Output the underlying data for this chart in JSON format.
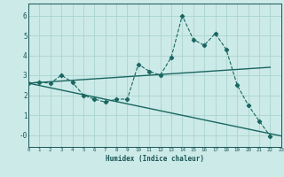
{
  "xlabel": "Humidex (Indice chaleur)",
  "ylabel": "",
  "background_color": "#cceae8",
  "grid_color": "#aad4d0",
  "line_color": "#1a6660",
  "x_min": 0,
  "x_max": 23,
  "y_min": -0.6,
  "y_max": 6.6,
  "y_ticks": [
    0,
    1,
    2,
    3,
    4,
    5,
    6
  ],
  "y_tick_labels": [
    "-0",
    "1",
    "2",
    "3",
    "4",
    "5",
    "6"
  ],
  "x_ticks": [
    0,
    1,
    2,
    3,
    4,
    5,
    6,
    7,
    8,
    9,
    10,
    11,
    12,
    13,
    14,
    15,
    16,
    17,
    18,
    19,
    20,
    21,
    22,
    23
  ],
  "series1_x": [
    0,
    1,
    2,
    3,
    4,
    5,
    6,
    7,
    8,
    9,
    10,
    11,
    12,
    13,
    14,
    15,
    16,
    17,
    18,
    19,
    20,
    21,
    22
  ],
  "series1_y": [
    2.6,
    2.65,
    2.6,
    3.0,
    2.65,
    2.0,
    1.8,
    1.65,
    1.8,
    1.8,
    3.55,
    3.2,
    3.0,
    3.9,
    6.0,
    4.8,
    4.5,
    5.1,
    4.3,
    2.5,
    1.5,
    0.7,
    -0.05
  ],
  "series2_x": [
    0,
    22
  ],
  "series2_y": [
    2.6,
    3.4
  ],
  "series3_x": [
    0,
    23
  ],
  "series3_y": [
    2.6,
    -0.05
  ],
  "font_color": "#1a5555"
}
